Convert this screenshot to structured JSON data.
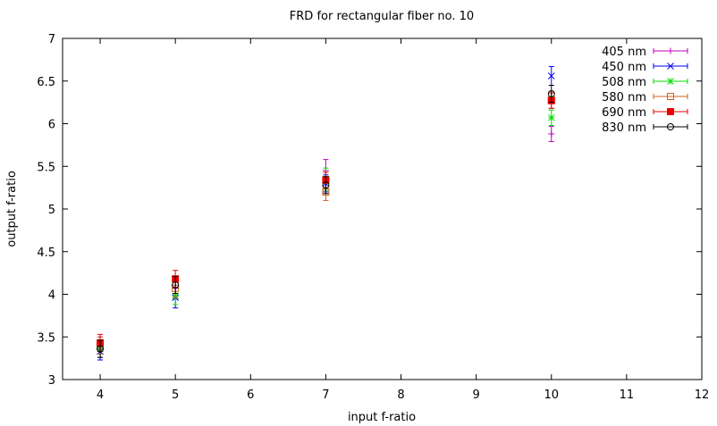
{
  "chart_data": {
    "type": "scatter",
    "title": "FRD for rectangular fiber no. 10",
    "xlabel": "input f-ratio",
    "ylabel": "output f-ratio",
    "xlim": [
      3.5,
      12
    ],
    "ylim": [
      3,
      7
    ],
    "xticks": [
      4,
      5,
      6,
      7,
      8,
      9,
      10,
      11,
      12
    ],
    "yticks": [
      3,
      3.5,
      4,
      4.5,
      5,
      5.5,
      6,
      6.5,
      7
    ],
    "ytick_labels": [
      "3",
      "3.5",
      "4",
      "4.5",
      "5",
      "5.5",
      "6",
      "6.5",
      "7"
    ],
    "grid": false,
    "legend_position": "top-right",
    "series": [
      {
        "name": "405 nm",
        "color": "#c000c0",
        "marker": "plus",
        "points": [
          {
            "x": 4,
            "y": 3.38,
            "err": 0.12
          },
          {
            "x": 5,
            "y": 4.07,
            "err": 0.12
          },
          {
            "x": 7,
            "y": 5.45,
            "err": 0.13
          },
          {
            "x": 10,
            "y": 5.88,
            "err": 0.09
          }
        ]
      },
      {
        "name": "450 nm",
        "color": "#0000ff",
        "marker": "cross",
        "points": [
          {
            "x": 4,
            "y": 3.33,
            "err": 0.1
          },
          {
            "x": 5,
            "y": 3.96,
            "err": 0.12
          },
          {
            "x": 7,
            "y": 5.3,
            "err": 0.1
          },
          {
            "x": 10,
            "y": 6.56,
            "err": 0.11
          }
        ]
      },
      {
        "name": "508 nm",
        "color": "#00dd00",
        "marker": "star",
        "points": [
          {
            "x": 4,
            "y": 3.36,
            "err": 0.1
          },
          {
            "x": 5,
            "y": 3.98,
            "err": 0.1
          },
          {
            "x": 7,
            "y": 5.35,
            "err": 0.13
          },
          {
            "x": 10,
            "y": 6.07,
            "err": 0.09
          }
        ]
      },
      {
        "name": "580 nm",
        "color": "#d06020",
        "marker": "square-open",
        "points": [
          {
            "x": 4,
            "y": 3.4,
            "err": 0.1
          },
          {
            "x": 5,
            "y": 4.07,
            "err": 0.1
          },
          {
            "x": 7,
            "y": 5.2,
            "err": 0.1
          },
          {
            "x": 10,
            "y": 6.28,
            "err": 0.1
          }
        ]
      },
      {
        "name": "690 nm",
        "color": "#ee0000",
        "marker": "square-filled",
        "points": [
          {
            "x": 4,
            "y": 3.43,
            "err": 0.1
          },
          {
            "x": 5,
            "y": 4.18,
            "err": 0.1
          },
          {
            "x": 7,
            "y": 5.34,
            "err": 0.09
          },
          {
            "x": 10,
            "y": 6.27,
            "err": 0.09
          }
        ]
      },
      {
        "name": "830 nm",
        "color": "#000000",
        "marker": "circle-open",
        "points": [
          {
            "x": 4,
            "y": 3.36,
            "err": 0.1
          },
          {
            "x": 5,
            "y": 4.11,
            "err": 0.1
          },
          {
            "x": 7,
            "y": 5.28,
            "err": 0.1
          },
          {
            "x": 10,
            "y": 6.35,
            "err": 0.1
          }
        ]
      }
    ]
  }
}
